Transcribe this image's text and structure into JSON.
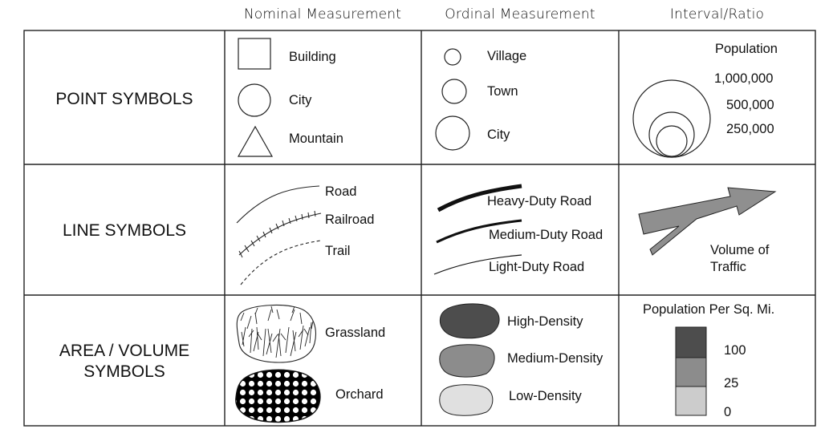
{
  "headers": {
    "nominal": "Nominal  Measurement",
    "ordinal": "Ordinal  Measurement",
    "interval": "Interval/Ratio"
  },
  "rows": {
    "point": "POINT SYMBOLS",
    "line": "LINE SYMBOLS",
    "area_line1": "AREA / VOLUME",
    "area_line2": "SYMBOLS"
  },
  "point": {
    "nominal": {
      "building": "Building",
      "city": "City",
      "mountain": "Mountain"
    },
    "ordinal": {
      "village": "Village",
      "town": "Town",
      "city": "City"
    },
    "interval": {
      "title": "Population",
      "v1": "1,000,000",
      "v2": "500,000",
      "v3": "250,000"
    }
  },
  "line": {
    "nominal": {
      "road": "Road",
      "railroad": "Railroad",
      "trail": "Trail"
    },
    "ordinal": {
      "heavy": "Heavy-Duty Road",
      "medium": "Medium-Duty Road",
      "light": "Light-Duty Road"
    },
    "interval": {
      "label1": "Volume of",
      "label2": "Traffic"
    }
  },
  "area": {
    "nominal": {
      "grassland": "Grassland",
      "orchard": "Orchard"
    },
    "ordinal": {
      "high": "High-Density",
      "medium": "Medium-Density",
      "low": "Low-Density"
    },
    "interval": {
      "title": "Population Per Sq. Mi.",
      "v1": "100",
      "v2": "25",
      "v3": "0"
    }
  },
  "colors": {
    "high_density": "#4d4d4d",
    "medium_density": "#8c8c8c",
    "low_density": "#e0e0e0",
    "arrow": "#8f8f8f",
    "scale_top": "#4d4d4d",
    "scale_mid": "#8c8c8c",
    "scale_low": "#cccccc"
  }
}
